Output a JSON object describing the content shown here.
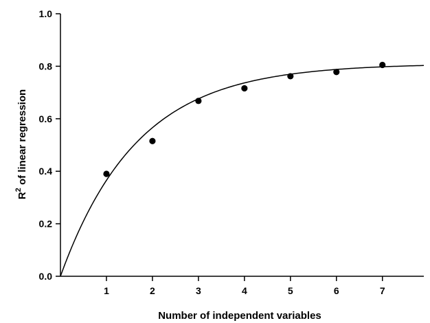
{
  "chart_data": {
    "type": "scatter",
    "xlabel": "Number of independent variables",
    "ylabel": {
      "base": "R",
      "superscript": "2",
      "rest": " of linear regression"
    },
    "xlim": [
      0,
      7.9
    ],
    "ylim": [
      0,
      1.0
    ],
    "x_ticks": [
      1,
      2,
      3,
      4,
      5,
      6,
      7
    ],
    "y_ticks": [
      0.0,
      0.2,
      0.4,
      0.6,
      0.8,
      1.0
    ],
    "y_tick_labels": [
      "0.0",
      "0.2",
      "0.4",
      "0.6",
      "0.8",
      "1.0"
    ],
    "grid": false,
    "points": [
      {
        "x": 1,
        "y": 0.39
      },
      {
        "x": 2,
        "y": 0.515
      },
      {
        "x": 3,
        "y": 0.668
      },
      {
        "x": 4,
        "y": 0.716
      },
      {
        "x": 5,
        "y": 0.762
      },
      {
        "x": 6,
        "y": 0.778
      },
      {
        "x": 7,
        "y": 0.805
      }
    ],
    "fit_curve": {
      "model": "exponential-rise",
      "asymptote": 0.81,
      "rate": 0.6
    },
    "colors": {
      "points": "#000000",
      "curve": "#000000",
      "axes": "#000000"
    }
  }
}
